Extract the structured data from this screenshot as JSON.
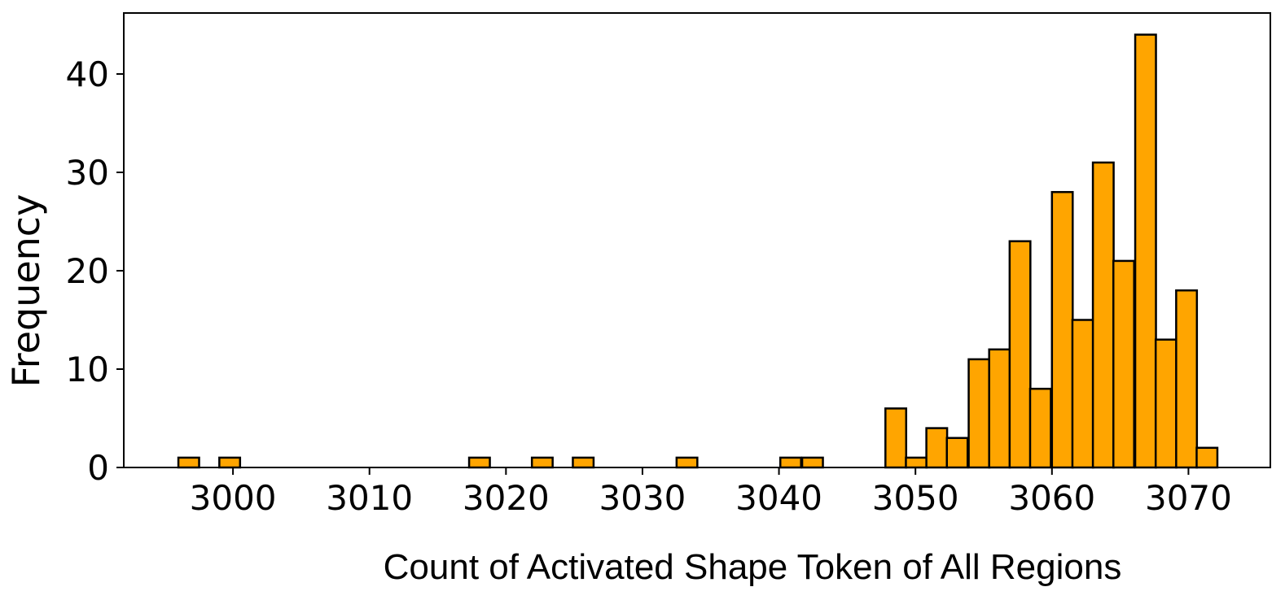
{
  "chart_data": {
    "type": "bar",
    "title": "",
    "xlabel": "Count of  Activated Shape Token of All Regions",
    "ylabel": "Frequency",
    "xlim": [
      2992,
      3076
    ],
    "ylim": [
      0,
      46.2
    ],
    "x_ticks": [
      3000,
      3010,
      3020,
      3030,
      3040,
      3050,
      3060,
      3070
    ],
    "y_ticks": [
      0,
      10,
      20,
      30,
      40
    ],
    "bin_width": 1.52,
    "grid": false,
    "legend": "none",
    "bar_color": "#FFA500",
    "edge_color": "#000000",
    "bars": [
      {
        "x": 2996.0,
        "value": 1
      },
      {
        "x": 2999.0,
        "value": 1
      },
      {
        "x": 3017.3,
        "value": 1
      },
      {
        "x": 3021.9,
        "value": 1
      },
      {
        "x": 3024.9,
        "value": 1
      },
      {
        "x": 3032.5,
        "value": 1
      },
      {
        "x": 3040.1,
        "value": 1
      },
      {
        "x": 3041.7,
        "value": 1
      },
      {
        "x": 3047.8,
        "value": 6
      },
      {
        "x": 3049.3,
        "value": 1
      },
      {
        "x": 3050.8,
        "value": 4
      },
      {
        "x": 3052.3,
        "value": 3
      },
      {
        "x": 3053.9,
        "value": 11
      },
      {
        "x": 3055.4,
        "value": 12
      },
      {
        "x": 3056.9,
        "value": 23
      },
      {
        "x": 3058.4,
        "value": 8
      },
      {
        "x": 3060.0,
        "value": 28
      },
      {
        "x": 3061.5,
        "value": 15
      },
      {
        "x": 3063.0,
        "value": 31
      },
      {
        "x": 3064.5,
        "value": 21
      },
      {
        "x": 3066.1,
        "value": 44
      },
      {
        "x": 3067.6,
        "value": 13
      },
      {
        "x": 3069.1,
        "value": 18
      },
      {
        "x": 3070.6,
        "value": 2
      }
    ]
  }
}
